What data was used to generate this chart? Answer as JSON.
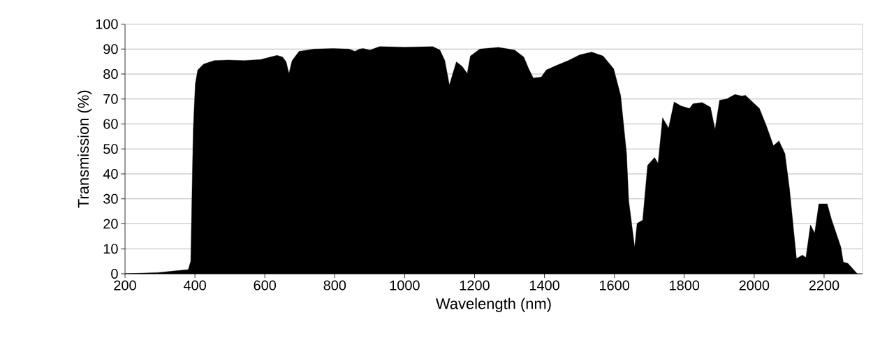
{
  "chart_data": {
    "type": "area",
    "xlabel": "Wavelength (nm)",
    "ylabel": "Transmission (%)",
    "xlim": [
      200,
      2310
    ],
    "ylim": [
      0,
      100
    ],
    "xticks": [
      200,
      400,
      600,
      800,
      1000,
      1200,
      1400,
      1600,
      1800,
      2000,
      2200
    ],
    "yticks": [
      0,
      10,
      20,
      30,
      40,
      50,
      60,
      70,
      80,
      90,
      100
    ],
    "grid": "y",
    "series": [
      {
        "color": "#000000",
        "x": [
          200,
          295,
          381,
          388,
          395,
          401,
          408,
          425,
          455,
          495,
          541,
          588,
          615,
          635,
          651,
          661,
          669,
          678,
          698,
          741,
          795,
          841,
          858,
          871,
          881,
          901,
          928,
          1001,
          1081,
          1101,
          1115,
          1128,
          1148,
          1165,
          1179,
          1188,
          1215,
          1268,
          1315,
          1341,
          1355,
          1368,
          1391,
          1405,
          1435,
          1468,
          1501,
          1535,
          1568,
          1598,
          1618,
          1635,
          1641,
          1658,
          1665,
          1681,
          1695,
          1715,
          1725,
          1738,
          1755,
          1771,
          1791,
          1815,
          1825,
          1851,
          1875,
          1888,
          1901,
          1921,
          1945,
          1965,
          1975,
          2015,
          2035,
          2055,
          2071,
          2088,
          2101,
          2121,
          2138,
          2148,
          2161,
          2173,
          2185,
          2209,
          2221,
          2248,
          2255,
          2268,
          2295
        ],
        "values": [
          0,
          0.5,
          1.7,
          5,
          57,
          76,
          81.6,
          84,
          85.4,
          85.6,
          85.4,
          85.8,
          86.8,
          87.5,
          86.8,
          84.9,
          80.2,
          85.4,
          89.1,
          90,
          90.2,
          90,
          89.1,
          90,
          90.2,
          89.6,
          91,
          90.8,
          91,
          89.6,
          85.4,
          75.6,
          84.9,
          83,
          80.2,
          87.2,
          90,
          90.7,
          89.6,
          86.8,
          82.1,
          78.4,
          78.8,
          81.6,
          83.5,
          85.4,
          87.7,
          88.8,
          87.2,
          82.1,
          71.4,
          48,
          29.4,
          10.7,
          20.2,
          21.5,
          43.4,
          46.6,
          44.3,
          62.5,
          58.3,
          68.8,
          67.2,
          66.2,
          68.1,
          68.6,
          66.7,
          57.8,
          69.5,
          70,
          71.8,
          71.2,
          71.5,
          66.2,
          59.2,
          51.3,
          53.2,
          48.1,
          34.1,
          6.1,
          7.5,
          6.5,
          19.6,
          16.3,
          28,
          28,
          21.9,
          10.7,
          4.7,
          4.2,
          0
        ]
      }
    ]
  }
}
